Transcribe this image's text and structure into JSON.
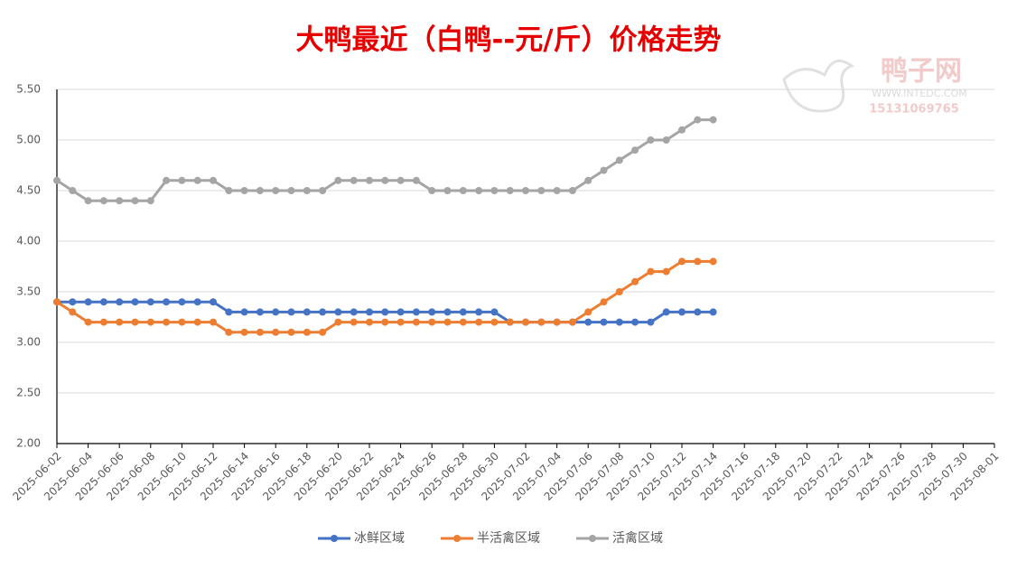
{
  "chart_data": {
    "type": "line",
    "title": "大鸭最近（白鸭--元/斤）价格走势",
    "watermark": [
      "鸭子网",
      "WWW.INTEDC.COM",
      "15131069765"
    ],
    "x": [
      "2025-06-02",
      "2025-06-03",
      "2025-06-04",
      "2025-06-05",
      "2025-06-06",
      "2025-06-07",
      "2025-06-08",
      "2025-06-09",
      "2025-06-10",
      "2025-06-11",
      "2025-06-12",
      "2025-06-13",
      "2025-06-14",
      "2025-06-15",
      "2025-06-16",
      "2025-06-17",
      "2025-06-18",
      "2025-06-19",
      "2025-06-20",
      "2025-06-21",
      "2025-06-22",
      "2025-06-23",
      "2025-06-24",
      "2025-06-25",
      "2025-06-26",
      "2025-06-27",
      "2025-06-28",
      "2025-06-29",
      "2025-06-30",
      "2025-07-01",
      "2025-07-02",
      "2025-07-03",
      "2025-07-04",
      "2025-07-05",
      "2025-07-06",
      "2025-07-07",
      "2025-07-08",
      "2025-07-09",
      "2025-07-10",
      "2025-07-11",
      "2025-07-12",
      "2025-07-13",
      "2025-07-14"
    ],
    "series": [
      {
        "name": "冰鲜区域",
        "color": "#4472c4",
        "values": [
          3.4,
          3.4,
          3.4,
          3.4,
          3.4,
          3.4,
          3.4,
          3.4,
          3.4,
          3.4,
          3.4,
          3.3,
          3.3,
          3.3,
          3.3,
          3.3,
          3.3,
          3.3,
          3.3,
          3.3,
          3.3,
          3.3,
          3.3,
          3.3,
          3.3,
          3.3,
          3.3,
          3.3,
          3.3,
          3.2,
          3.2,
          3.2,
          3.2,
          3.2,
          3.2,
          3.2,
          3.2,
          3.2,
          3.2,
          3.3,
          3.3,
          3.3,
          3.3
        ]
      },
      {
        "name": "半活禽区域",
        "color": "#ed7d31",
        "values": [
          3.4,
          3.3,
          3.2,
          3.2,
          3.2,
          3.2,
          3.2,
          3.2,
          3.2,
          3.2,
          3.2,
          3.1,
          3.1,
          3.1,
          3.1,
          3.1,
          3.1,
          3.1,
          3.2,
          3.2,
          3.2,
          3.2,
          3.2,
          3.2,
          3.2,
          3.2,
          3.2,
          3.2,
          3.2,
          3.2,
          3.2,
          3.2,
          3.2,
          3.2,
          3.3,
          3.4,
          3.5,
          3.6,
          3.7,
          3.7,
          3.8,
          3.8,
          3.8
        ]
      },
      {
        "name": "活禽区域",
        "color": "#a5a5a5",
        "values": [
          4.6,
          4.5,
          4.4,
          4.4,
          4.4,
          4.4,
          4.4,
          4.6,
          4.6,
          4.6,
          4.6,
          4.5,
          4.5,
          4.5,
          4.5,
          4.5,
          4.5,
          4.5,
          4.6,
          4.6,
          4.6,
          4.6,
          4.6,
          4.6,
          4.5,
          4.5,
          4.5,
          4.5,
          4.5,
          4.5,
          4.5,
          4.5,
          4.5,
          4.5,
          4.6,
          4.7,
          4.8,
          4.9,
          5.0,
          5.0,
          5.1,
          5.2,
          5.2
        ]
      }
    ],
    "xlim": [
      "2025-06-02",
      "2025-08-01"
    ],
    "xticks": [
      "2025-06-02",
      "2025-06-04",
      "2025-06-06",
      "2025-06-08",
      "2025-06-10",
      "2025-06-12",
      "2025-06-14",
      "2025-06-16",
      "2025-06-18",
      "2025-06-20",
      "2025-06-22",
      "2025-06-24",
      "2025-06-26",
      "2025-06-28",
      "2025-06-30",
      "2025-07-02",
      "2025-07-04",
      "2025-07-06",
      "2025-07-08",
      "2025-07-10",
      "2025-07-12",
      "2025-07-14",
      "2025-07-16",
      "2025-07-18",
      "2025-07-20",
      "2025-07-22",
      "2025-07-24",
      "2025-07-26",
      "2025-07-28",
      "2025-07-30",
      "2025-08-01"
    ],
    "ylim": [
      2,
      5.5
    ],
    "yticks": [
      {
        "value": 2,
        "label": "2.00"
      },
      {
        "value": 2.5,
        "label": "2.50"
      },
      {
        "value": 3,
        "label": "3.00"
      },
      {
        "value": 3.5,
        "label": "3.50"
      },
      {
        "value": 4,
        "label": "4.00"
      },
      {
        "value": 4.5,
        "label": "4.50"
      },
      {
        "value": 5,
        "label": "5.00"
      },
      {
        "value": 5.5,
        "label": "5.50"
      }
    ],
    "grid": true,
    "legend": "bottom"
  }
}
